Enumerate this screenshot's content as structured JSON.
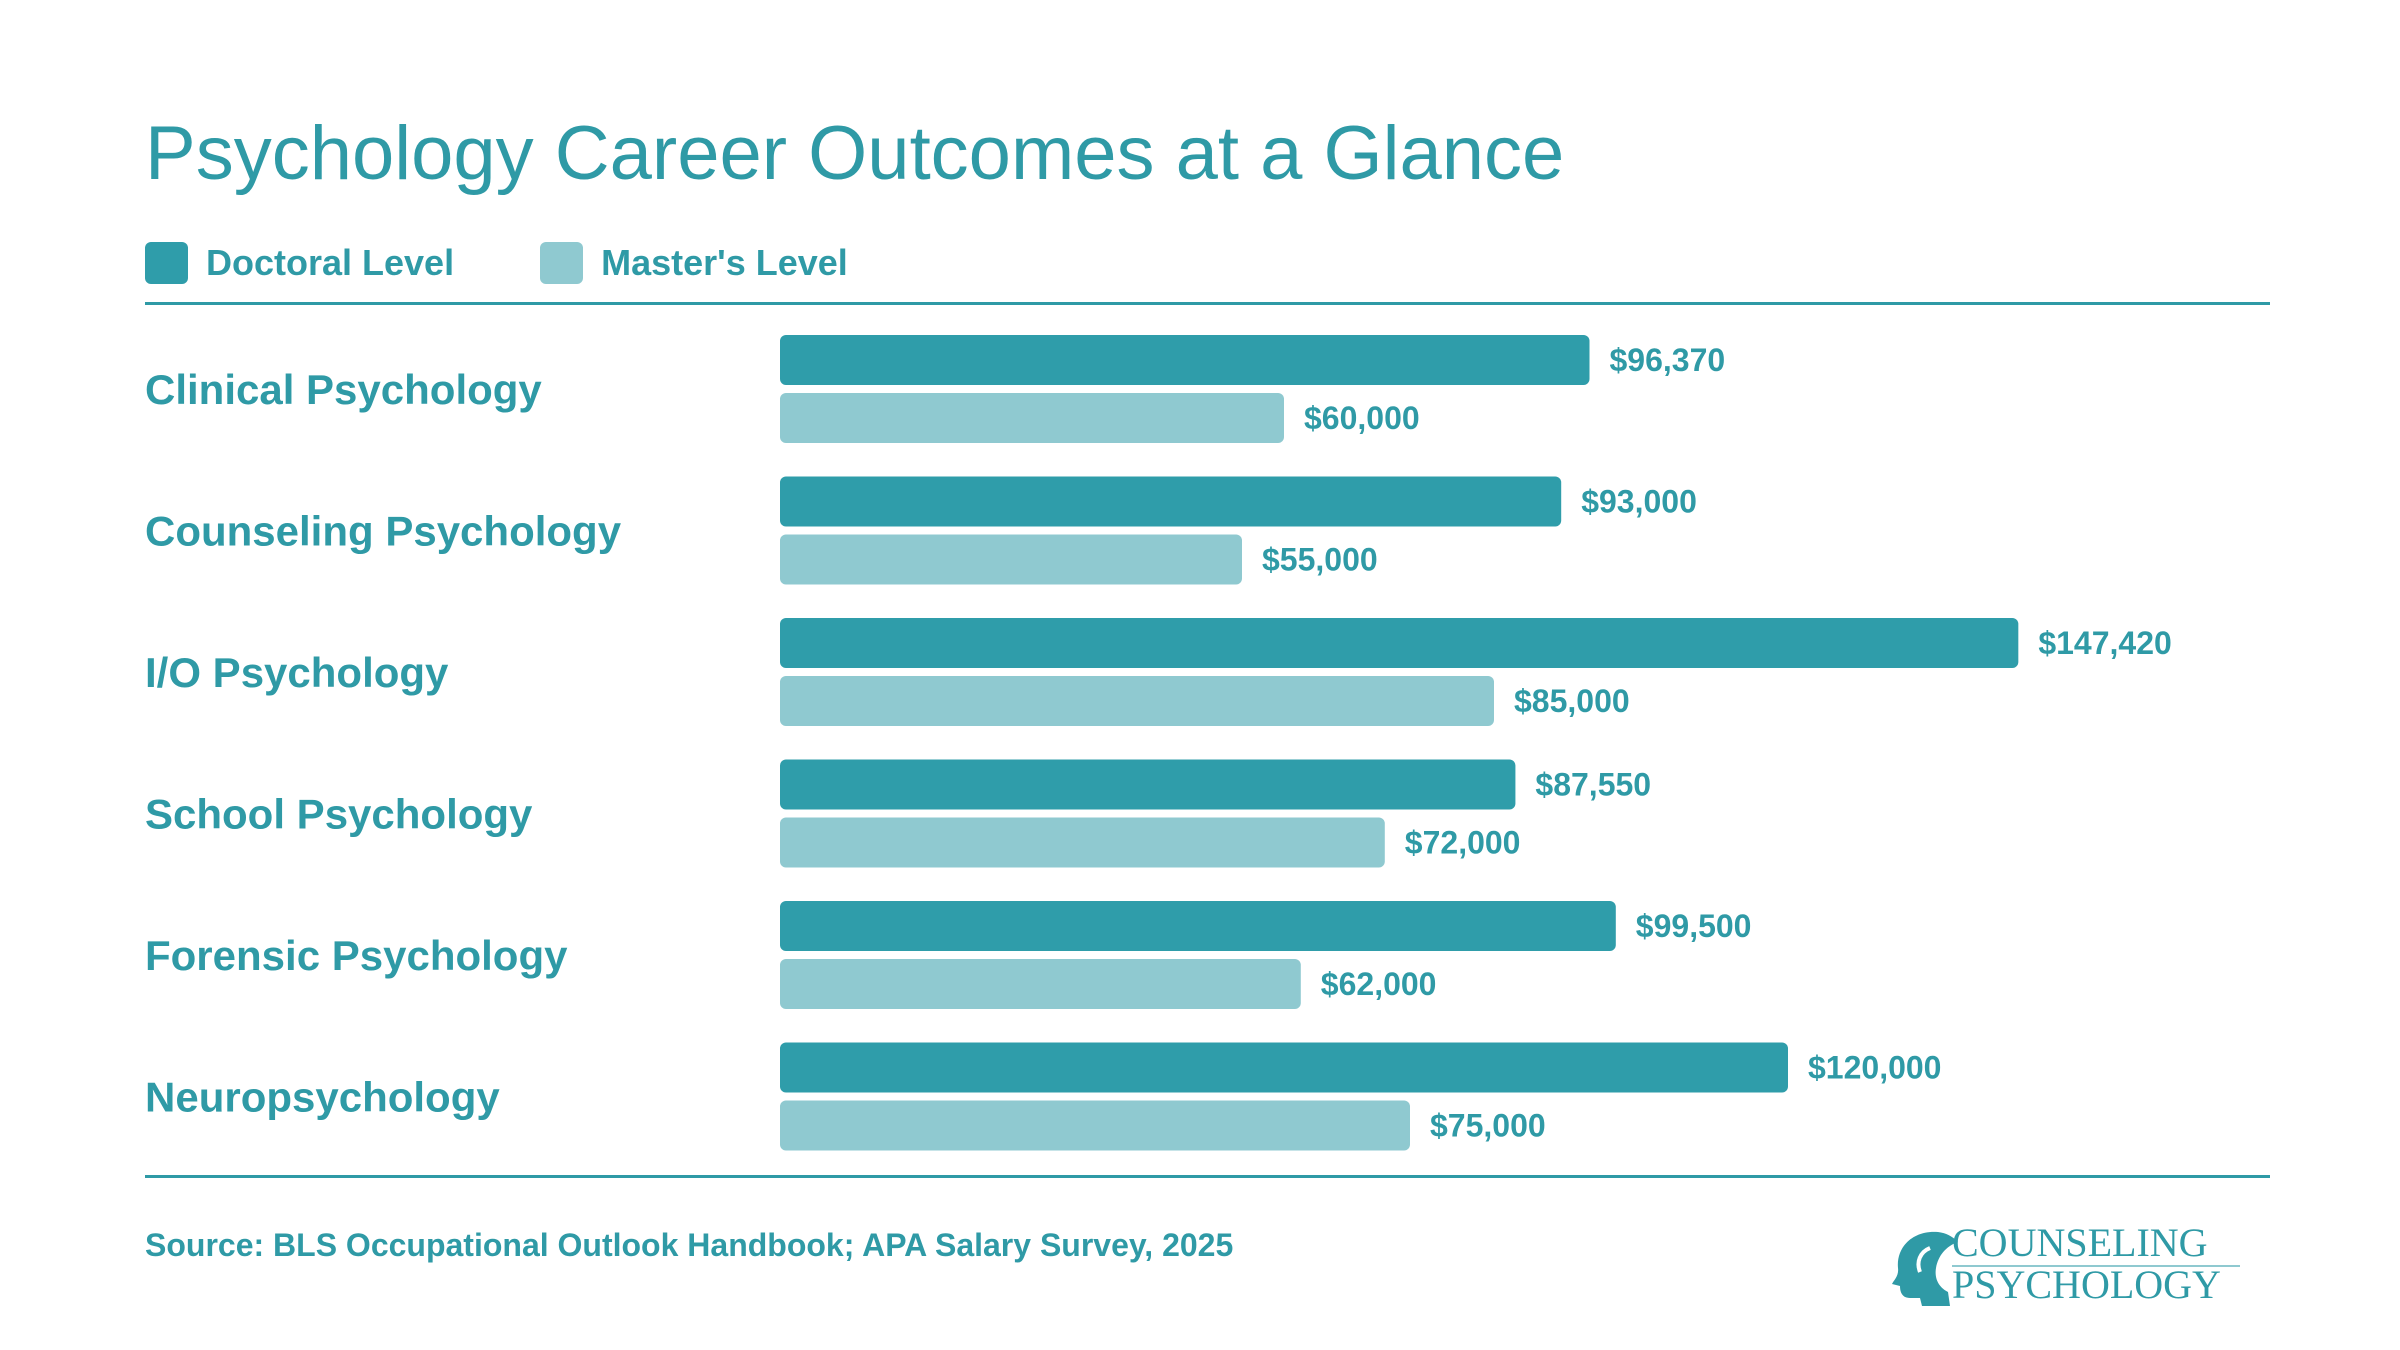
{
  "colors": {
    "text": "#2f9aa6",
    "doctoral": "#2f9daa",
    "masters": "#8fc9d0"
  },
  "logo": {
    "line1": "COUNSELING",
    "line2": "PSYCHOLOGY"
  },
  "chart_data": {
    "type": "bar",
    "orientation": "horizontal",
    "title": "Psychology Career Outcomes at a Glance",
    "categories": [
      "Clinical Psychology",
      "Counseling Psychology",
      "I/O Psychology",
      "School Psychology",
      "Forensic Psychology",
      "Neuropsychology"
    ],
    "series": [
      {
        "name": "Doctoral Level",
        "values": [
          96370,
          93000,
          147420,
          87550,
          99500,
          120000
        ],
        "labels": [
          "$96,370",
          "$93,000",
          "$147,420",
          "$87,550",
          "$99,500",
          "$120,000"
        ]
      },
      {
        "name": "Master's Level",
        "values": [
          60000,
          55000,
          85000,
          72000,
          62000,
          75000
        ],
        "labels": [
          "$60,000",
          "$55,000",
          "$85,000",
          "$72,000",
          "$62,000",
          "$75,000"
        ]
      }
    ],
    "xlim": [
      0,
      175000
    ],
    "legend": "top-left",
    "grid": false,
    "source": "Source: BLS Occupational Outlook Handbook; APA Salary Survey, 2025"
  }
}
